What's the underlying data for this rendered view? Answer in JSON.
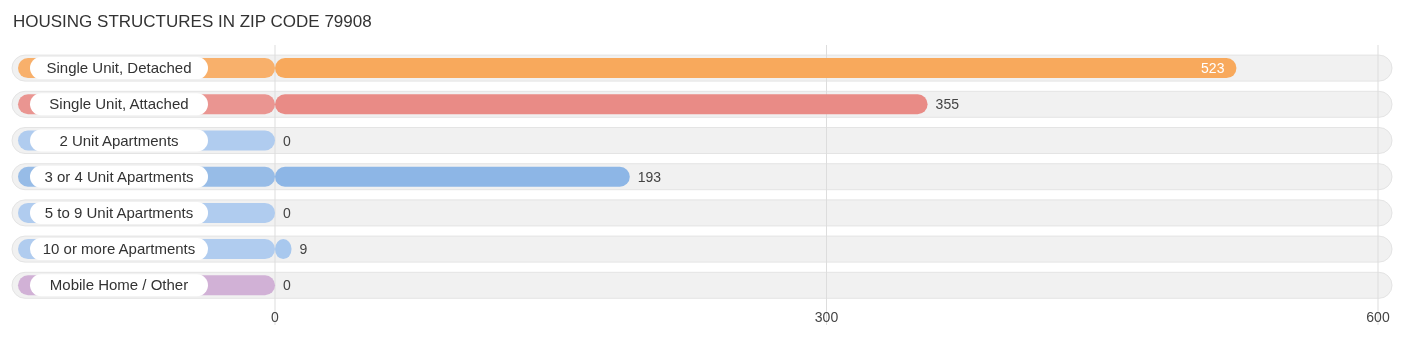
{
  "chart_data": {
    "type": "bar",
    "orientation": "horizontal",
    "title": "HOUSING STRUCTURES IN ZIP CODE 79908",
    "categories": [
      "Single Unit, Detached",
      "Single Unit, Attached",
      "2 Unit Apartments",
      "3 or 4 Unit Apartments",
      "5 to 9 Unit Apartments",
      "10 or more Apartments",
      "Mobile Home / Other"
    ],
    "values": [
      523,
      355,
      0,
      193,
      0,
      9,
      0
    ],
    "colors": [
      "#f8a95c",
      "#e98b86",
      "#a8c8ee",
      "#8db6e6",
      "#a8c8ee",
      "#a8c8ee",
      "#cdaad3"
    ],
    "xlim": [
      0,
      600
    ],
    "xticks": [
      0,
      300,
      600
    ],
    "grid": "x",
    "data_labels": true
  }
}
